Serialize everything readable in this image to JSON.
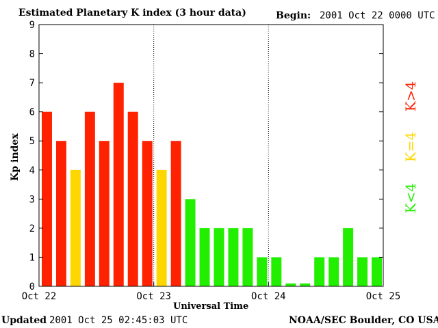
{
  "header": {
    "title": "Estimated Planetary K index (3 hour data)",
    "begin_label": "Begin:",
    "begin_value": "2001 Oct 22 0000 UTC"
  },
  "footer": {
    "updated_label": "Updated",
    "updated_value": "2001 Oct 25 02:45:03 UTC",
    "source": "NOAA/SEC Boulder, CO USA"
  },
  "legend": {
    "high": "K>4",
    "equal": "K=4",
    "low": "K<4"
  },
  "chart_data": {
    "type": "bar",
    "xlabel": "Universal Time",
    "ylabel": "Kp index",
    "ylim": [
      0,
      9
    ],
    "yticks": [
      "0",
      "1",
      "2",
      "3",
      "4",
      "5",
      "6",
      "7",
      "8",
      "9"
    ],
    "xticks": [
      "Oct 22",
      "Oct 23",
      "Oct 24",
      "Oct 25"
    ],
    "values": [
      6,
      5,
      4,
      6,
      5,
      7,
      6,
      5,
      4,
      5,
      3,
      2,
      2,
      2,
      2,
      1,
      1,
      0.1,
      0.1,
      1,
      1,
      2,
      1,
      1
    ],
    "grid": "dotted day separators",
    "colors": {
      "high": "#ff2200",
      "equal": "#ffd700",
      "low": "#22ee00"
    }
  }
}
